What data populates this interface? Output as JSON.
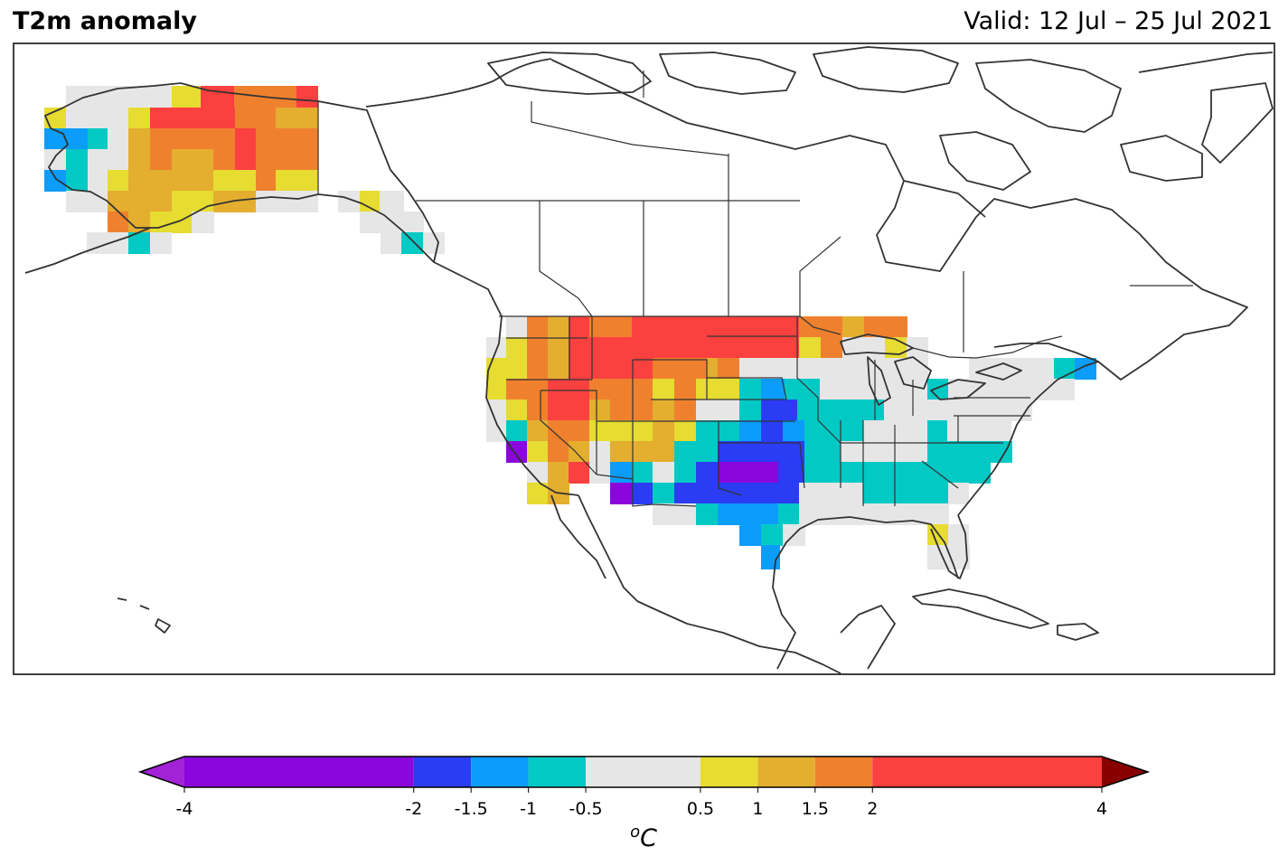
{
  "header": {
    "title": "T2m anomaly",
    "valid": "Valid: 12 Jul – 25 Jul 2021"
  },
  "colorbar": {
    "unit_prefix": "o",
    "unit": "C",
    "bounds": [
      -4,
      -2,
      -1.5,
      -1,
      -0.5,
      0.5,
      1,
      1.5,
      2,
      4
    ],
    "tick_labels": [
      "-4",
      "-2",
      "-1.5",
      "-1",
      "-0.5",
      "0.5",
      "1",
      "1.5",
      "2",
      "4"
    ],
    "colors": [
      "#8a06dc",
      "#2a3df5",
      "#0c9cfa",
      "#03c9c5",
      "#e6e6e6",
      "#e6dc32",
      "#e4ae2f",
      "#ef812e",
      "#fb4040"
    ],
    "under_color": "#a222d7",
    "over_color": "#880000"
  },
  "chart_data": {
    "type": "heatmap",
    "title": "T2m anomaly",
    "subtitle": "Valid: 12 Jul – 25 Jul 2021",
    "units": "°C",
    "region": "North America",
    "regions_summary": [
      {
        "region": "Alaska interior",
        "anomaly_class": "2 to 4"
      },
      {
        "region": "Alaska west coast",
        "anomaly_class": "-1.5 to -0.5"
      },
      {
        "region": "US Northern Plains",
        "anomaly_class": "2 to 4"
      },
      {
        "region": "US Northern Rockies",
        "anomaly_class": "2 to 4"
      },
      {
        "region": "US Southern Plains",
        "anomaly_class": "-4 to -1.5"
      },
      {
        "region": "US Southeast",
        "anomaly_class": "-1 to -0.5"
      },
      {
        "region": "US Northeast",
        "anomaly_class": "-0.5 to 0.5"
      },
      {
        "region": "Southern California coast",
        "anomaly_class": "-4 to -2"
      }
    ]
  }
}
